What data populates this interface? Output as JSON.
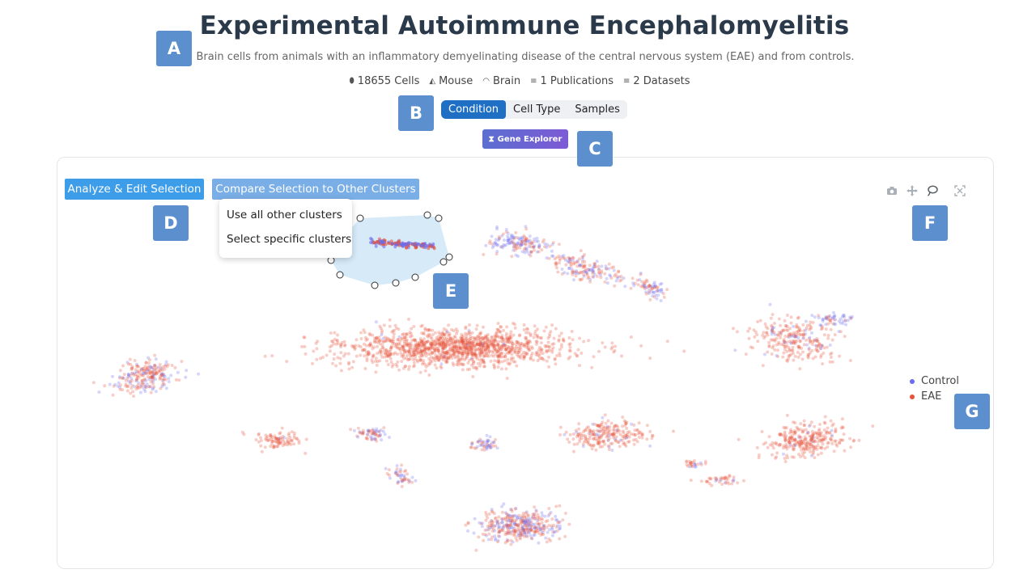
{
  "header": {
    "title": "Experimental Autoimmune Encephalomyelitis",
    "subtitle": "Brain cells from animals with an inflammatory demyelinating disease of the central nervous system (EAE) and from controls."
  },
  "stats": {
    "cells": "18655 Cells",
    "species": "Mouse",
    "tissue": "Brain",
    "publications": "1 Publications",
    "datasets": "2 Datasets"
  },
  "tabs": {
    "condition": "Condition",
    "cell_type": "Cell Type",
    "samples": "Samples",
    "active": "Condition"
  },
  "gene_explorer": {
    "label": "Gene Explorer",
    "icon": "hourglass-icon"
  },
  "toolbar": {
    "analyze_label": "Analyze & Edit Selection",
    "compare_label": "Compare Selection to Other Clusters"
  },
  "compare_menu": {
    "items": [
      "Use all other clusters",
      "Select specific clusters"
    ]
  },
  "modebar": {
    "icons": [
      "camera-icon",
      "pan-icon",
      "lasso-icon",
      "autoscale-icon"
    ]
  },
  "legend": {
    "items": [
      {
        "label": "Control",
        "color": "#6a6cf0"
      },
      {
        "label": "EAE",
        "color": "#e5533a"
      }
    ]
  },
  "callouts": [
    "A",
    "B",
    "C",
    "D",
    "E",
    "F",
    "G"
  ],
  "colors": {
    "accent": "#1f6fc5",
    "control": "#6a6cf0",
    "eae": "#e5533a",
    "callout": "#5b8fce"
  }
}
